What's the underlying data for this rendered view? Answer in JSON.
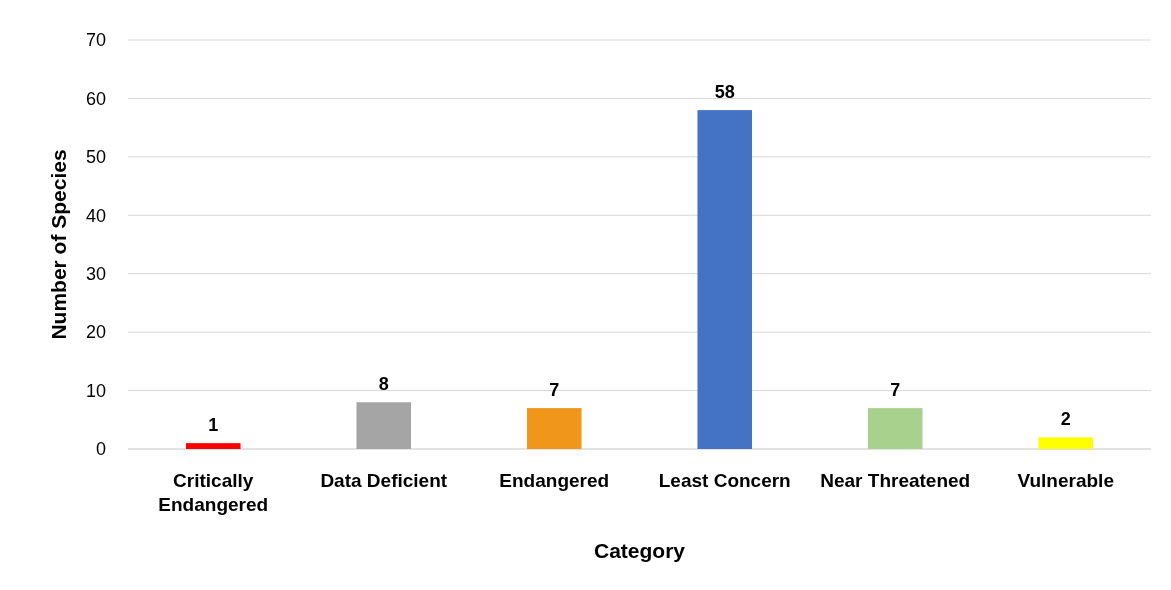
{
  "chart_data": {
    "type": "bar",
    "xlabel": "Category",
    "ylabel": "Number of Species",
    "categories": [
      "Critically Endangered",
      "Data Deficient",
      "Endangered",
      "Least Concern",
      "Near Threatened",
      "Vulnerable"
    ],
    "values": [
      1,
      8,
      7,
      58,
      7,
      2
    ],
    "colors": [
      "#ff0000",
      "#a5a5a5",
      "#f0961a",
      "#4472c4",
      "#a9d18e",
      "#ffff00"
    ],
    "ylim": [
      0,
      70
    ],
    "yticks": [
      0,
      10,
      20,
      30,
      40,
      50,
      60,
      70
    ],
    "grid": "y",
    "data_labels": true
  }
}
